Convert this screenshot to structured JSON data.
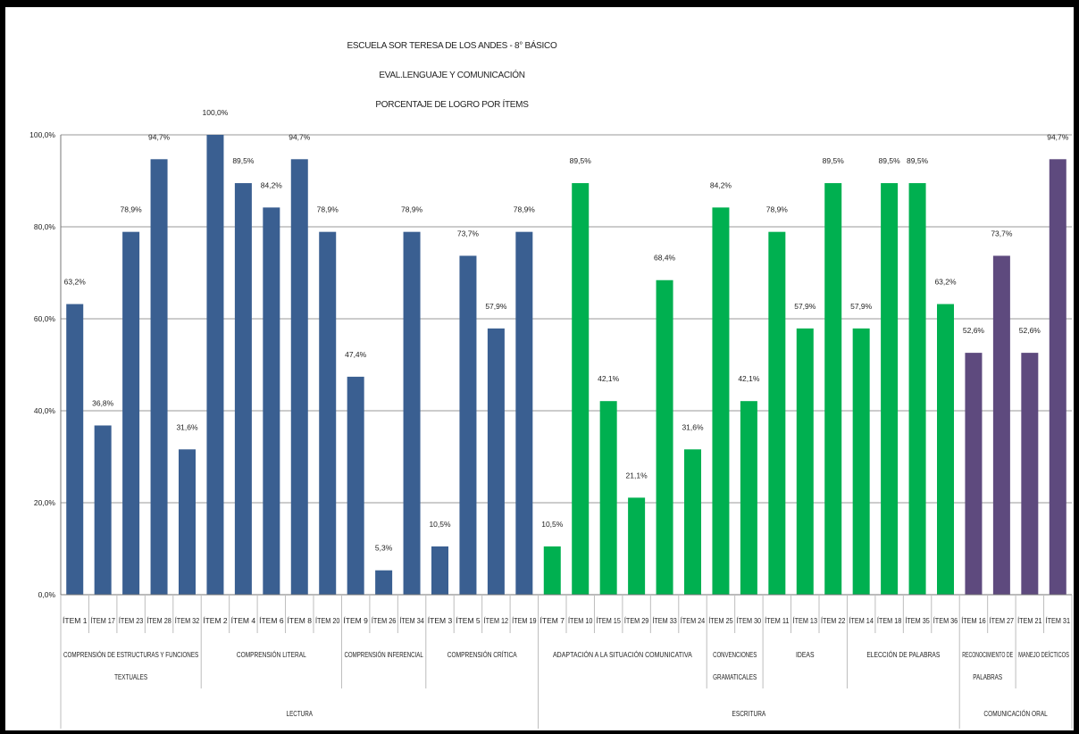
{
  "chart_data": {
    "type": "bar",
    "title_lines": [
      "ESCUELA SOR TERESA DE LOS ANDES - 8° BÁSICO",
      "EVAL.LENGUAJE Y COMUNICACIÓN",
      "PORCENTAJE DE LOGRO POR ÍTEMS"
    ],
    "ylim": [
      0,
      100
    ],
    "yticks": [
      0,
      20,
      40,
      60,
      80,
      100
    ],
    "ytick_labels": [
      "0,0%",
      "20,0%",
      "40,0%",
      "60,0%",
      "80,0%",
      "100,0%"
    ],
    "grid": true,
    "colors": {
      "lectura": "#3a5f91",
      "escritura": "#00b050",
      "oral": "#5e4a7e"
    },
    "categories": [
      "ÍTEM 1",
      "ÍTEM 17",
      "ÍTEM 23",
      "ÍTEM 28",
      "ÍTEM 32",
      "ÍTEM 2",
      "ÍTEM 4",
      "ÍTEM 6",
      "ÍTEM 8",
      "ÍTEM 20",
      "ÍTEM 9",
      "ÍTEM 26",
      "ÍTEM 34",
      "ÍTEM 3",
      "ÍTEM 5",
      "ÍTEM 12",
      "ÍTEM 19",
      "ÍTEM 7",
      "ÍTEM 10",
      "ÍTEM 15",
      "ÍTEM 29",
      "ÍTEM 33",
      "ÍTEM 24",
      "ÍTEM 25",
      "ÍTEM 30",
      "ÍTEM 11",
      "ÍTEM 13",
      "ÍTEM 22",
      "ÍTEM 14",
      "ÍTEM 18",
      "ÍTEM 35",
      "ÍTEM 36",
      "ÍTEM 16",
      "ÍTEM 27",
      "ÍTEM 21",
      "ÍTEM 31"
    ],
    "values": [
      63.2,
      36.8,
      78.9,
      94.7,
      31.6,
      100.0,
      89.5,
      84.2,
      94.7,
      78.9,
      47.4,
      5.3,
      78.9,
      10.5,
      73.7,
      57.9,
      78.9,
      10.5,
      89.5,
      42.1,
      21.1,
      68.4,
      31.6,
      84.2,
      42.1,
      78.9,
      57.9,
      89.5,
      57.9,
      89.5,
      89.5,
      63.2,
      52.6,
      73.7,
      52.6,
      94.7
    ],
    "value_labels": [
      "63,2%",
      "36,8%",
      "78,9%",
      "94,7%",
      "31,6%",
      "100,0%",
      "89,5%",
      "84,2%",
      "94,7%",
      "78,9%",
      "47,4%",
      "5,3%",
      "78,9%",
      "10,5%",
      "73,7%",
      "57,9%",
      "78,9%",
      "10,5%",
      "89,5%",
      "42,1%",
      "21,1%",
      "68,4%",
      "31,6%",
      "84,2%",
      "42,1%",
      "78,9%",
      "57,9%",
      "89,5%",
      "57,9%",
      "89,5%",
      "89,5%",
      "63,2%",
      "52,6%",
      "73,7%",
      "52,6%",
      "94,7%"
    ],
    "subgroups": [
      {
        "label_lines": [
          "COMPRENSIÓN DE ESTRUCTURAS Y FUNCIONES",
          "TEXTUALES"
        ],
        "start": 0,
        "end": 5,
        "color_key": "lectura"
      },
      {
        "label_lines": [
          "COMPRENSIÓN LITERAL"
        ],
        "start": 5,
        "end": 10,
        "color_key": "lectura"
      },
      {
        "label_lines": [
          "COMPRENSIÓN INFERENCIAL"
        ],
        "start": 10,
        "end": 13,
        "color_key": "lectura"
      },
      {
        "label_lines": [
          "COMPRENSIÓN CRÍTICA"
        ],
        "start": 13,
        "end": 17,
        "color_key": "lectura"
      },
      {
        "label_lines": [
          "ADAPTACIÓN A LA SITUACIÓN COMUNICATIVA"
        ],
        "start": 17,
        "end": 23,
        "color_key": "escritura"
      },
      {
        "label_lines": [
          "CONVENCIONES",
          "GRAMATICALES"
        ],
        "start": 23,
        "end": 25,
        "color_key": "escritura"
      },
      {
        "label_lines": [
          "IDEAS"
        ],
        "start": 25,
        "end": 28,
        "color_key": "escritura"
      },
      {
        "label_lines": [
          "ELECCIÓN DE PALABRAS"
        ],
        "start": 28,
        "end": 32,
        "color_key": "escritura"
      },
      {
        "label_lines": [
          "RECONOCIMIENTO DE",
          "PALABRAS"
        ],
        "start": 32,
        "end": 34,
        "color_key": "oral"
      },
      {
        "label_lines": [
          "MANEJO DEÍCTICOS"
        ],
        "start": 34,
        "end": 36,
        "color_key": "oral"
      }
    ],
    "groups": [
      {
        "label": "LECTURA",
        "start": 0,
        "end": 17
      },
      {
        "label": "ESCRITURA",
        "start": 17,
        "end": 32
      },
      {
        "label": "COMUNICACIÓN ORAL",
        "start": 32,
        "end": 36
      }
    ]
  }
}
